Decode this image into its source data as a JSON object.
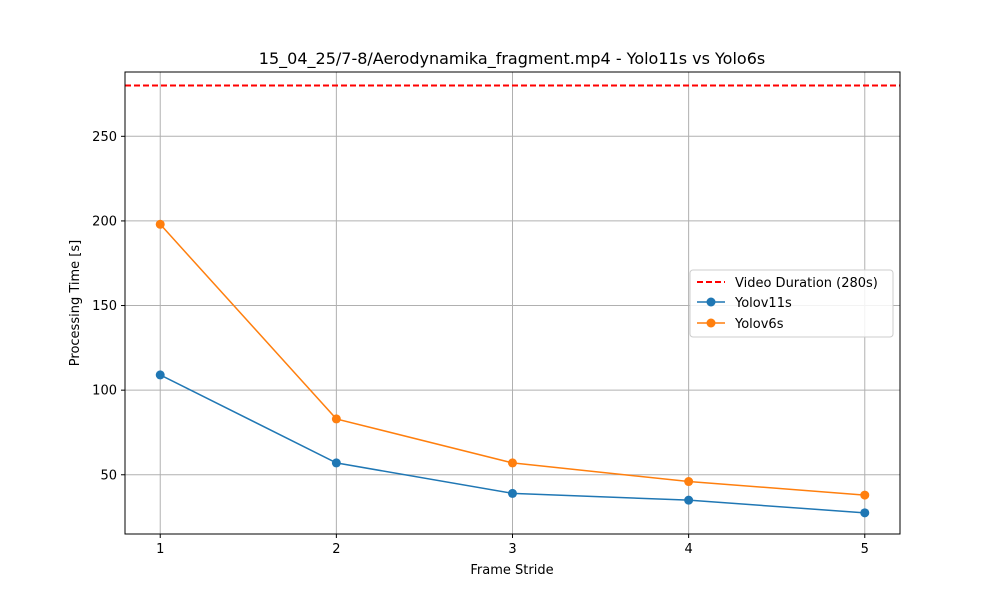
{
  "chart_data": {
    "type": "line",
    "title": "15_04_25/7-8/Aerodynamika_fragment.mp4 - Yolo11s vs Yolo6s",
    "xlabel": "Frame Stride",
    "ylabel": "Processing Time [s]",
    "x": [
      1,
      2,
      3,
      4,
      5
    ],
    "xlim": [
      0.8,
      5.2
    ],
    "ylim": [
      15,
      288
    ],
    "xticks": [
      "1",
      "2",
      "3",
      "4",
      "5"
    ],
    "yticks": [
      50,
      100,
      150,
      200,
      250
    ],
    "ytick_labels": [
      "50",
      "100",
      "150",
      "200",
      "250"
    ],
    "grid": true,
    "legend_position": "center-right",
    "reference_line": {
      "name": "Video Duration (280s)",
      "value": 280,
      "color": "#ff0000",
      "style": "dashed"
    },
    "series": [
      {
        "name": "Yolov11s",
        "color": "#1f77b4",
        "values": [
          109,
          57,
          39,
          35,
          27.5
        ]
      },
      {
        "name": "Yolov6s",
        "color": "#ff7f0e",
        "values": [
          198,
          83,
          57,
          46,
          38
        ]
      }
    ]
  }
}
